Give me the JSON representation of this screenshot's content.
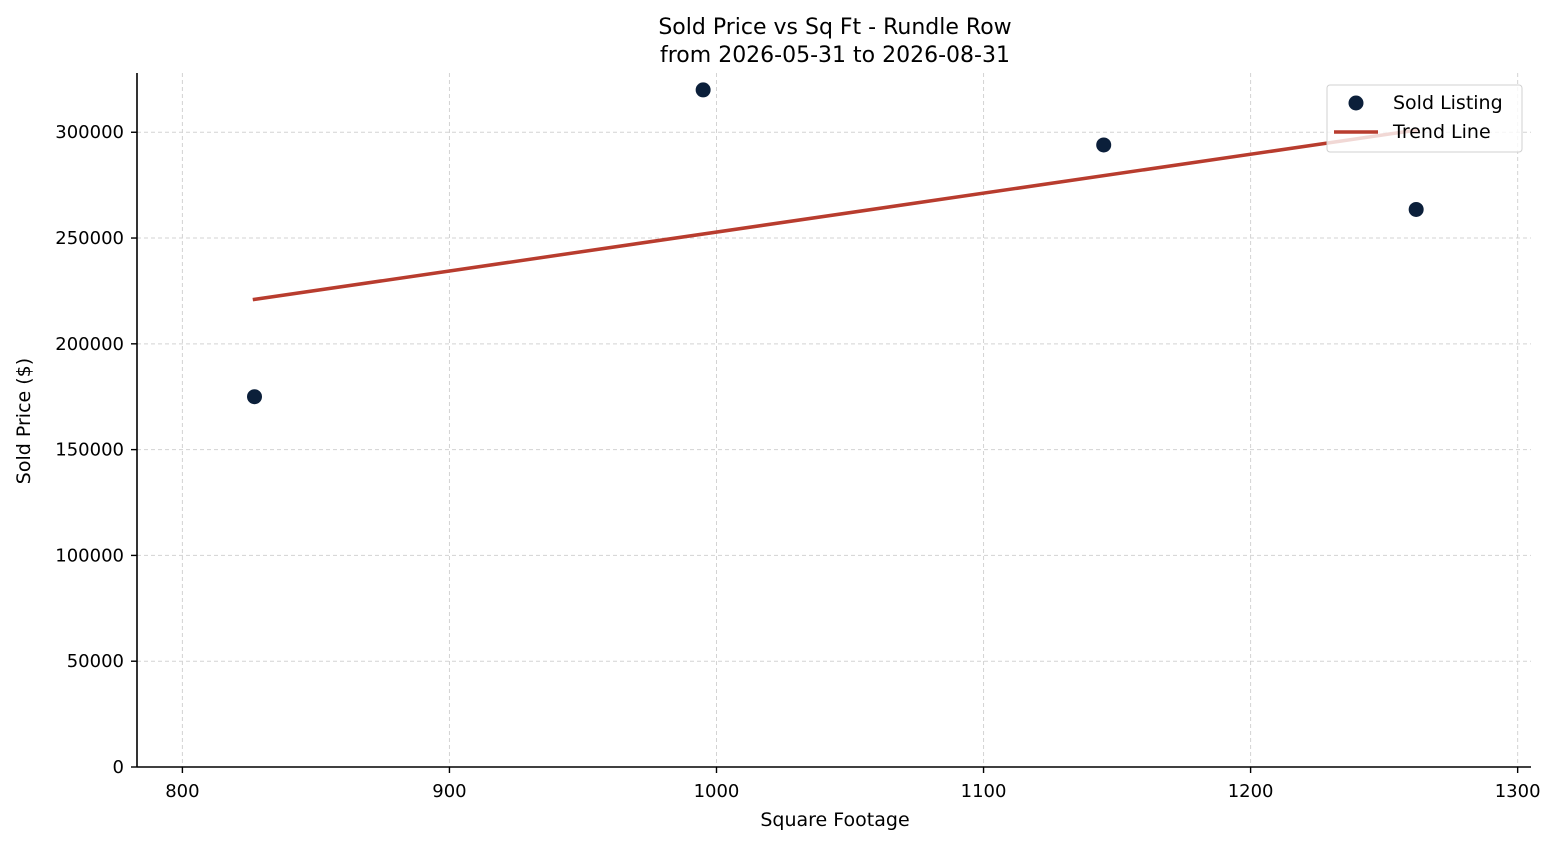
{
  "chart_data": {
    "type": "scatter",
    "title": "Sold Price vs Sq Ft - Rundle Row",
    "subtitle": "from 2026-05-31 to 2026-08-31",
    "xlabel": "Square Footage",
    "ylabel": "Sold Price ($)",
    "xlim": [
      783,
      1305
    ],
    "ylim": [
      0,
      328000
    ],
    "x_ticks": [
      800,
      900,
      1000,
      1100,
      1200,
      1300
    ],
    "x_tick_labels": [
      "800",
      "900",
      "1000",
      "1100",
      "1200",
      "1300"
    ],
    "y_ticks": [
      0,
      50000,
      100000,
      150000,
      200000,
      250000,
      300000
    ],
    "y_tick_labels": [
      "0",
      "50000",
      "100000",
      "150000",
      "200000",
      "250000",
      "300000"
    ],
    "grid": true,
    "legend_position": "top-right",
    "series": [
      {
        "name": "Sold Listing",
        "kind": "scatter",
        "color": "#0b1f3a",
        "points": [
          {
            "x": 827,
            "y": 175000
          },
          {
            "x": 995,
            "y": 320000
          },
          {
            "x": 1145,
            "y": 294000
          },
          {
            "x": 1262,
            "y": 263500
          }
        ]
      },
      {
        "name": "Trend Line",
        "kind": "line",
        "color": "#b83c2e",
        "points": [
          {
            "x": 827,
            "y": 221000
          },
          {
            "x": 1262,
            "y": 301000
          }
        ]
      }
    ]
  }
}
